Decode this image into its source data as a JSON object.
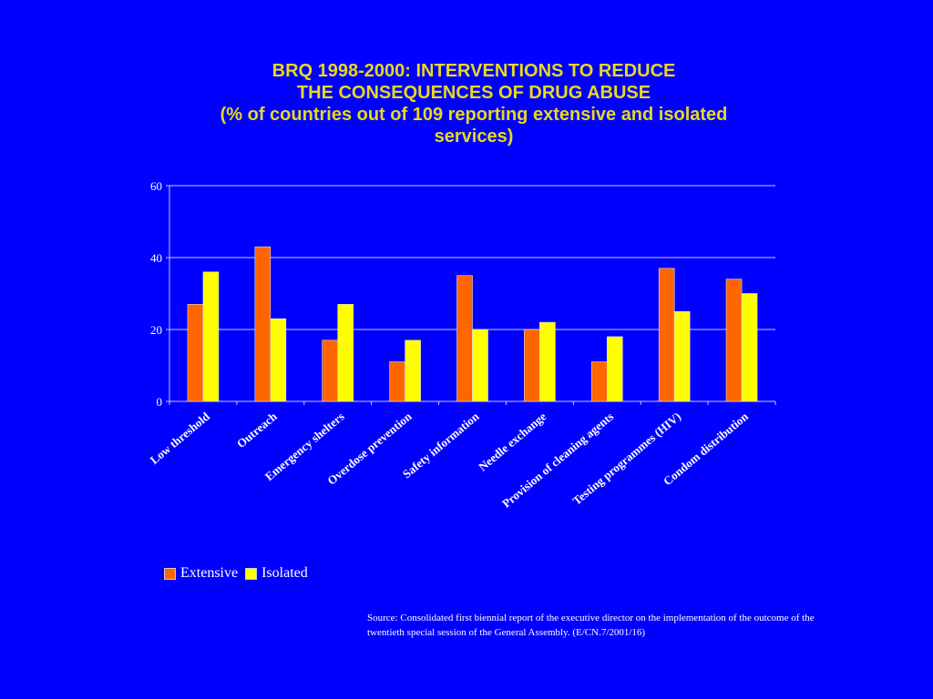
{
  "title": {
    "line1": "BRQ 1998-2000:  INTERVENTIONS TO REDUCE",
    "line2": "THE CONSEQUENCES OF DRUG ABUSE",
    "line3": "(% of countries out of 109 reporting extensive and isolated",
    "line4": "services)"
  },
  "source": "Source: Consolidated first biennial report of the executive director on the implementation of the outcome of the twentieth special session of the General Assembly. (E/CN.7/2001/16)",
  "chart_data": {
    "type": "bar",
    "title": "BRQ 1998-2000: INTERVENTIONS TO REDUCE THE CONSEQUENCES OF DRUG ABUSE (% of countries out of 109 reporting extensive and isolated services)",
    "categories": [
      "Low threshold",
      "Outreach",
      "Emergency shelters",
      "Overdose prevention",
      "Safety information",
      "Needle exchange",
      "Provision of cleaning agents",
      "Testing programmes (HIV)",
      "Condom distribution"
    ],
    "series": [
      {
        "name": "Extensive",
        "color": "#ff6600",
        "values": [
          27,
          43,
          17,
          11,
          35,
          20,
          11,
          37,
          34
        ]
      },
      {
        "name": "Isolated",
        "color": "#ffff00",
        "values": [
          36,
          23,
          27,
          17,
          20,
          22,
          18,
          25,
          30
        ]
      }
    ],
    "yticks": [
      "0",
      "20",
      "40",
      "60"
    ],
    "ylim": [
      0,
      60
    ],
    "grid": true,
    "legend_position": "bottom-left",
    "xlabel": "",
    "ylabel": ""
  }
}
